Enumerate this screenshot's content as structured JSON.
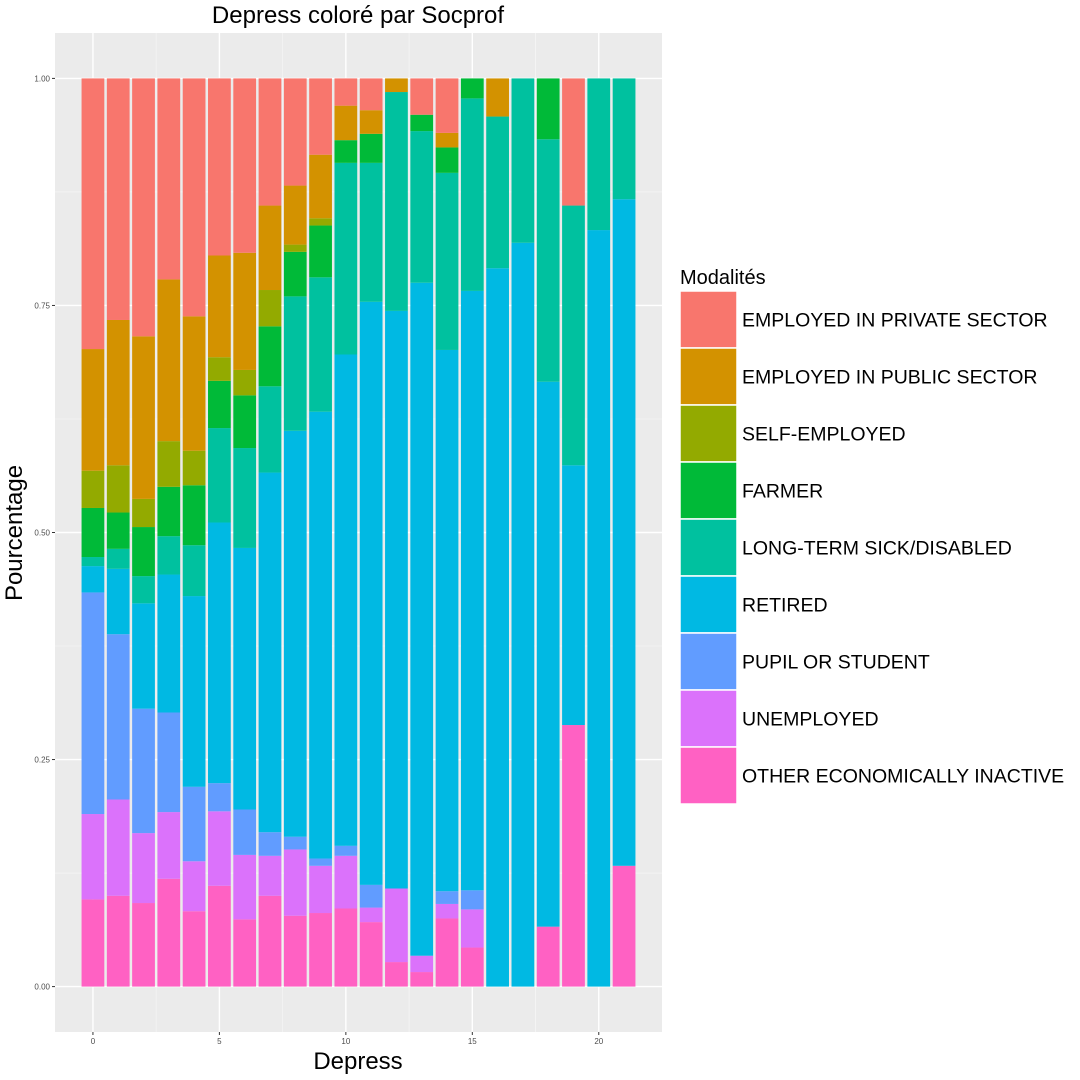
{
  "chart_data": {
    "type": "bar",
    "stacked": "fill",
    "title": "Depress coloré par Socprof",
    "xlabel": "Depress",
    "ylabel": "Pourcentage",
    "xlim": [
      -1.5,
      22.5
    ],
    "ylim": [
      -0.05,
      1.05
    ],
    "x_ticks": [
      0,
      5,
      10,
      15,
      20
    ],
    "y_ticks": [
      0,
      0.25,
      0.5,
      0.75,
      1
    ],
    "x_tick_labels": [
      "0",
      "5",
      "10",
      "15",
      "20"
    ],
    "y_tick_labels": [
      "0.00",
      "0.25",
      "0.50",
      "0.75",
      "1.00"
    ],
    "grid": true,
    "legend": {
      "title": "Modalités",
      "position": "right"
    },
    "x": [
      0,
      1,
      2,
      3,
      4,
      5,
      6,
      7,
      8,
      9,
      10,
      11,
      12,
      13,
      14,
      15,
      16,
      17,
      18,
      19,
      20,
      21
    ],
    "series": [
      {
        "name": "EMPLOYED IN PRIVATE SECTOR",
        "color": "#F8766D",
        "values": [
          0.298,
          0.266,
          0.284,
          0.22,
          0.262,
          0.195,
          0.192,
          0.14,
          0.118,
          0.084,
          0.03,
          0.035,
          0,
          0.04,
          0.06,
          0,
          0,
          0,
          0,
          0.14,
          0,
          0
        ]
      },
      {
        "name": "EMPLOYED IN PUBLIC SECTOR",
        "color": "#D39200",
        "values": [
          0.134,
          0.16,
          0.179,
          0.177,
          0.148,
          0.112,
          0.129,
          0.093,
          0.065,
          0.07,
          0.038,
          0.026,
          0.015,
          0,
          0.016,
          0,
          0.042,
          0,
          0,
          0,
          0,
          0
        ]
      },
      {
        "name": "SELF-EMPLOYED",
        "color": "#93AA00",
        "values": [
          0.041,
          0.052,
          0.031,
          0.05,
          0.038,
          0.026,
          0.028,
          0.04,
          0.008,
          0.008,
          0,
          0,
          0,
          0,
          0,
          0,
          0,
          0,
          0,
          0,
          0,
          0
        ]
      },
      {
        "name": "FARMER",
        "color": "#00BA38",
        "values": [
          0.054,
          0.04,
          0.054,
          0.054,
          0.066,
          0.052,
          0.058,
          0.066,
          0.049,
          0.057,
          0.025,
          0.032,
          0,
          0.018,
          0.028,
          0.022,
          0,
          0,
          0.067,
          0,
          0,
          0
        ]
      },
      {
        "name": "LONG-TERM SICK/DISABLED",
        "color": "#00C19F",
        "values": [
          0.01,
          0.022,
          0.03,
          0.042,
          0.056,
          0.104,
          0.11,
          0.095,
          0.148,
          0.148,
          0.211,
          0.153,
          0.241,
          0.167,
          0.195,
          0.212,
          0.167,
          0.181,
          0.267,
          0.286,
          0.167,
          0.133
        ]
      },
      {
        "name": "RETIRED",
        "color": "#00B9E3",
        "values": [
          0.029,
          0.072,
          0.116,
          0.151,
          0.21,
          0.287,
          0.288,
          0.396,
          0.447,
          0.492,
          0.541,
          0.642,
          0.636,
          0.741,
          0.596,
          0.66,
          0.791,
          0.819,
          0.6,
          0.286,
          0.833,
          0.734
        ]
      },
      {
        "name": "PUPIL OR STUDENT",
        "color": "#619CFF",
        "values": [
          0.244,
          0.182,
          0.137,
          0.109,
          0.082,
          0.031,
          0.05,
          0.026,
          0.014,
          0.008,
          0.011,
          0.025,
          0,
          0,
          0.014,
          0.021,
          0,
          0,
          0,
          0,
          0,
          0
        ]
      },
      {
        "name": "UNEMPLOYED",
        "color": "#DB72FB",
        "values": [
          0.094,
          0.106,
          0.077,
          0.073,
          0.055,
          0.082,
          0.071,
          0.044,
          0.073,
          0.052,
          0.058,
          0.016,
          0.081,
          0.018,
          0.016,
          0.042,
          0,
          0,
          0,
          0,
          0,
          0
        ]
      },
      {
        "name": "OTHER ECONOMICALLY INACTIVE",
        "color": "#FF61C3",
        "values": [
          0.096,
          0.1,
          0.092,
          0.118,
          0.083,
          0.111,
          0.074,
          0.1,
          0.078,
          0.081,
          0.086,
          0.071,
          0.027,
          0.016,
          0.075,
          0.043,
          0,
          0,
          0.066,
          0.288,
          0,
          0.133
        ]
      }
    ]
  }
}
